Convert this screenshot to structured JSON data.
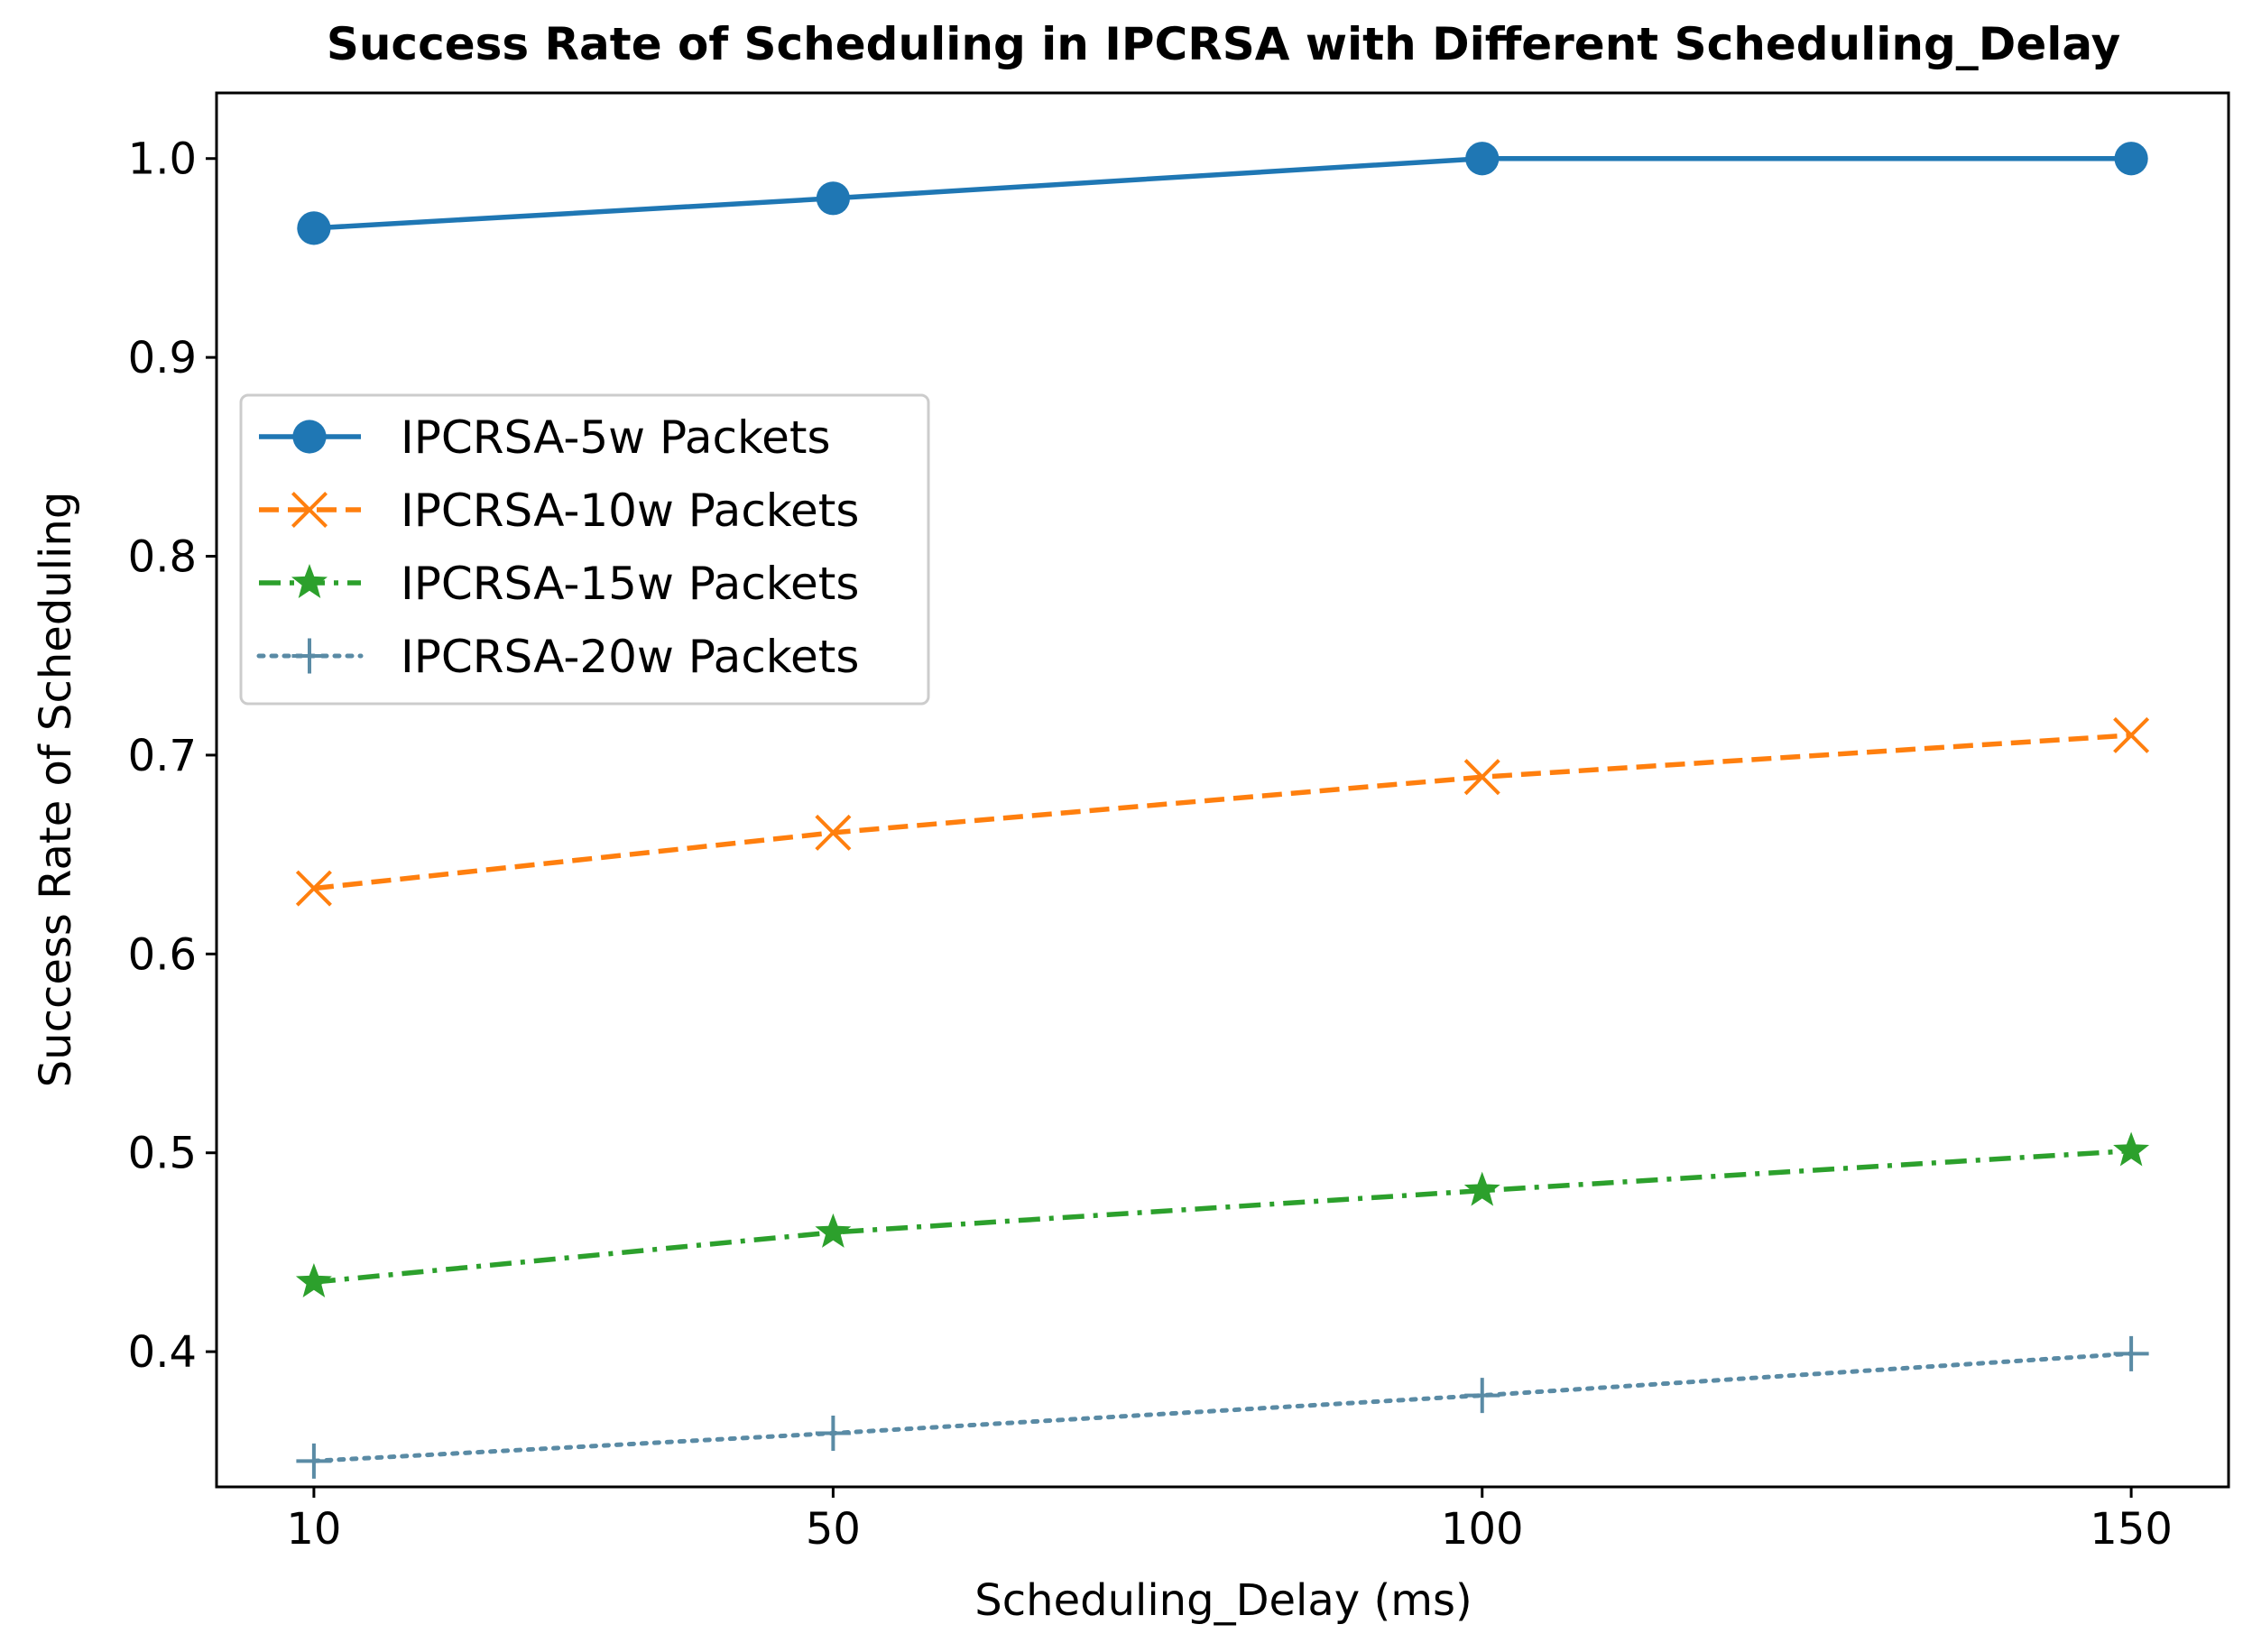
{
  "chart_data": {
    "type": "line",
    "title": "Success Rate of Scheduling in IPCRSA with Different Scheduling_Delay",
    "xlabel": "Scheduling_Delay (ms)",
    "ylabel": "Success Rate of Scheduling",
    "x": [
      10,
      50,
      100,
      150
    ],
    "x_tick_labels": [
      "10",
      "50",
      "100",
      "150"
    ],
    "y_ticks": [
      0.4,
      0.5,
      0.6,
      0.7,
      0.8,
      0.9,
      1.0
    ],
    "y_tick_labels": [
      "0.4",
      "0.5",
      "0.6",
      "0.7",
      "0.8",
      "0.9",
      "1.0"
    ],
    "xlim": [
      2.5,
      157.5
    ],
    "ylim": [
      0.332,
      1.033
    ],
    "grid": false,
    "legend_position": "center-left",
    "series": [
      {
        "name": "IPCRSA-5w Packets",
        "values": [
          0.965,
          0.98,
          1.0,
          1.0
        ],
        "color": "#1f77b4",
        "line_style": "solid",
        "marker": "circle"
      },
      {
        "name": "IPCRSA-10w Packets",
        "values": [
          0.633,
          0.661,
          0.689,
          0.71
        ],
        "color": "#ff7f0e",
        "line_style": "dashed",
        "marker": "x"
      },
      {
        "name": "IPCRSA-15w Packets",
        "values": [
          0.435,
          0.46,
          0.481,
          0.501
        ],
        "color": "#2ca02c",
        "line_style": "dashdot",
        "marker": "star"
      },
      {
        "name": "IPCRSA-20w Packets",
        "values": [
          0.345,
          0.359,
          0.378,
          0.399
        ],
        "color": "#5a8ba5",
        "line_style": "dotted",
        "marker": "plus"
      }
    ]
  }
}
